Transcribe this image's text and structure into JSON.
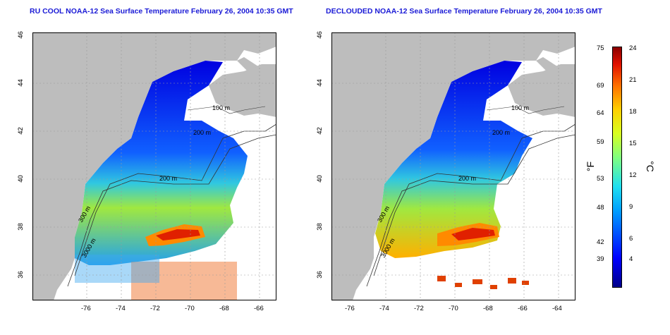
{
  "maps": [
    {
      "title": "RU COOL NOAA-12 Sea Surface Temperature February 26, 2004 10:35 GMT",
      "contour_labels": [
        "100 m",
        "200 m",
        "200 m",
        "300 m",
        "3000 m"
      ]
    },
    {
      "title": "DECLOUDED NOAA-12 Sea Surface Temperature February 26, 2004 10:35 GMT",
      "contour_labels": [
        "100 m",
        "200 m",
        "200 m",
        "300 m",
        "3000 m"
      ]
    }
  ],
  "axes": {
    "x_ticks": [
      "-76",
      "-74",
      "-72",
      "-70",
      "-68",
      "-66",
      "-64"
    ],
    "y_ticks": [
      "36",
      "38",
      "40",
      "42",
      "44",
      "46"
    ]
  },
  "colorbar": {
    "fahrenheit_ticks": [
      "75",
      "69",
      "64",
      "59",
      "53",
      "48",
      "42",
      "39"
    ],
    "celsius_ticks": [
      "24",
      "21",
      "18",
      "15",
      "12",
      "9",
      "6",
      "4"
    ],
    "fahrenheit_unit": "°F",
    "celsius_unit": "°C"
  },
  "colors": {
    "land": "#bdbdbd",
    "cloud": "#ffffff",
    "title": "#1a1ad6"
  }
}
